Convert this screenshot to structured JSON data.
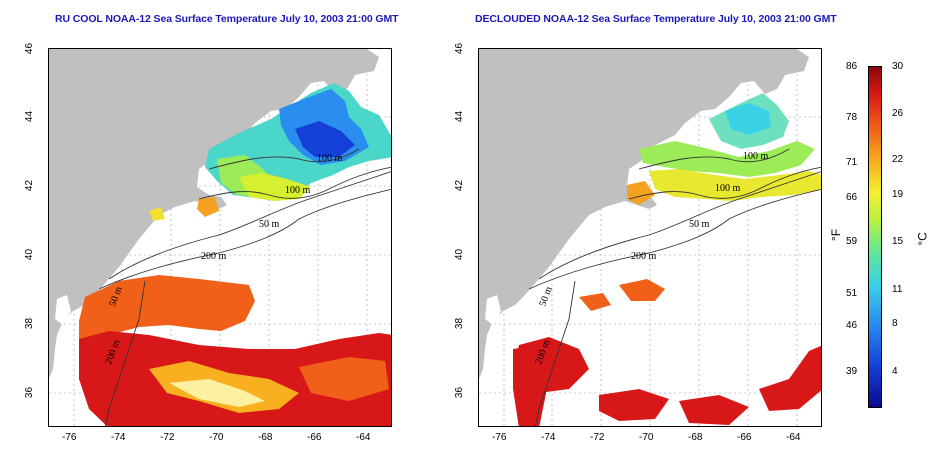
{
  "titles": {
    "left": "RU COOL NOAA-12 Sea Surface Temperature July 10, 2003 21:00 GMT",
    "right": "DECLOUDED NOAA-12 Sea Surface Temperature July 10, 2003 21:00 GMT"
  },
  "axes": {
    "x_ticks": [
      "-76",
      "-74",
      "-72",
      "-70",
      "-68",
      "-66",
      "-64"
    ],
    "y_ticks": [
      "46",
      "44",
      "42",
      "40",
      "38",
      "36"
    ],
    "lon_range": [
      -77,
      -63
    ],
    "lat_range": [
      35,
      46
    ]
  },
  "contour_labels": {
    "m100a": "100 m",
    "m100b": "100 m",
    "m50": "50 m",
    "m200": "200 m",
    "m50s": "50 m",
    "m200s": "200 m"
  },
  "colorbar": {
    "fahrenheit_unit": "°F",
    "celsius_unit": "°C",
    "fahrenheit_ticks": [
      "86",
      "78",
      "71",
      "66",
      "59",
      "51",
      "46",
      "39"
    ],
    "celsius_ticks": [
      "30",
      "26",
      "22",
      "19",
      "15",
      "11",
      "8",
      "4"
    ],
    "colors": {
      "cold": "#0a0a8c",
      "cool": "#3ad2e6",
      "mid": "#f4f030",
      "warm": "#f06018",
      "hot": "#8c0a0a",
      "land": "#c0c0c0"
    }
  }
}
